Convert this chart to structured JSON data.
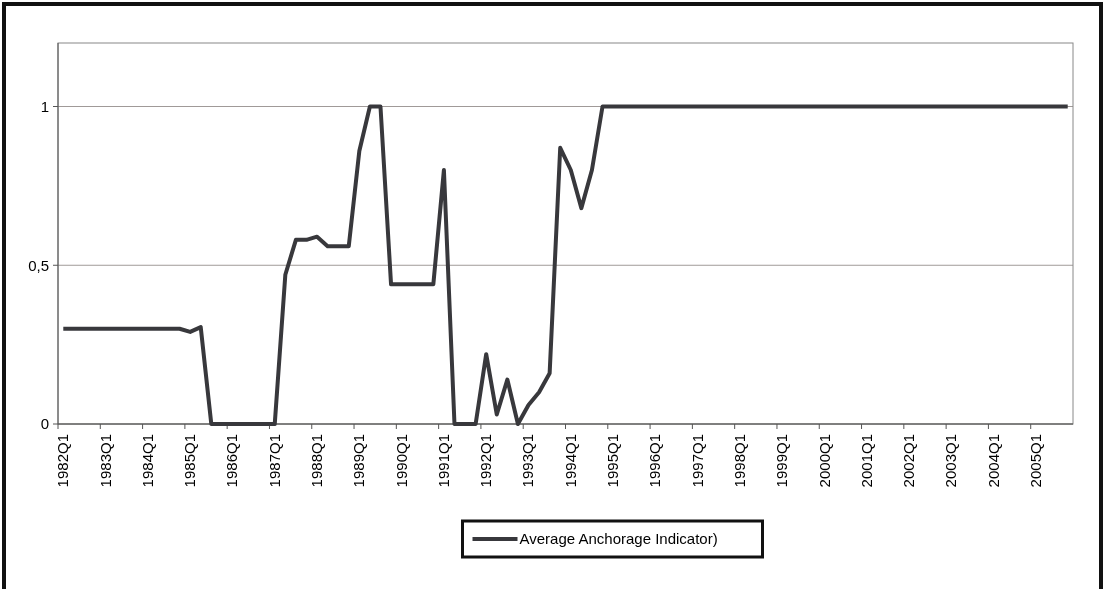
{
  "chart_data": {
    "type": "line",
    "categories": [
      "1982Q1",
      null,
      null,
      null,
      "1983Q1",
      null,
      null,
      null,
      "1984Q1",
      null,
      null,
      null,
      "1985Q1",
      null,
      null,
      null,
      "1986Q1",
      null,
      null,
      null,
      "1987Q1",
      null,
      null,
      null,
      "1988Q1",
      null,
      null,
      null,
      "1989Q1",
      null,
      null,
      null,
      "1990Q1",
      null,
      null,
      null,
      "1991Q1",
      null,
      null,
      null,
      "1992Q1",
      null,
      null,
      null,
      "1993Q1",
      null,
      null,
      null,
      "1994Q1",
      null,
      null,
      null,
      "1995Q1",
      null,
      null,
      null,
      "1996Q1",
      null,
      null,
      null,
      "1997Q1",
      null,
      null,
      null,
      "1998Q1",
      null,
      null,
      null,
      "1999Q1",
      null,
      null,
      null,
      "2000Q1",
      null,
      null,
      null,
      "2001Q1",
      null,
      null,
      null,
      "2002Q1",
      null,
      null,
      null,
      "2003Q1",
      null,
      null,
      null,
      "2004Q1",
      null,
      null,
      null,
      "2005Q1",
      null,
      null,
      null
    ],
    "series": [
      {
        "name": "Average Anchorage Indicator)",
        "color": "#38383c",
        "values": [
          0.3,
          0.3,
          0.3,
          0.3,
          0.3,
          0.3,
          0.3,
          0.3,
          0.3,
          0.3,
          0.3,
          0.3,
          0.29,
          0.305,
          0,
          0,
          0,
          0,
          0,
          0,
          0,
          0.47,
          0.58,
          0.58,
          0.59,
          0.56,
          0.56,
          0.56,
          0.86,
          1,
          1,
          0.44,
          0.44,
          0.44,
          0.44,
          0.44,
          0.8,
          0,
          0,
          0,
          0.22,
          0.03,
          0.14,
          0,
          0.06,
          0.1,
          0.16,
          0.87,
          0.8,
          0.68,
          0.8,
          1,
          1,
          1,
          1,
          1,
          1,
          1,
          1,
          1,
          1,
          1,
          1,
          1,
          1,
          1,
          1,
          1,
          1,
          1,
          1,
          1,
          1,
          1,
          1,
          1,
          1,
          1,
          1,
          1,
          1,
          1,
          1,
          1,
          1,
          1,
          1,
          1,
          1,
          1,
          1,
          1,
          1,
          1,
          1,
          1
        ]
      }
    ],
    "ylim": [
      0,
      1.2
    ],
    "yticks": [
      {
        "value": 0,
        "label": "0"
      },
      {
        "value": 0.5,
        "label": "0,5"
      },
      {
        "value": 1,
        "label": "1"
      }
    ],
    "grid": "y",
    "legend": "bottom",
    "marker": "none",
    "line_style": "solid"
  }
}
